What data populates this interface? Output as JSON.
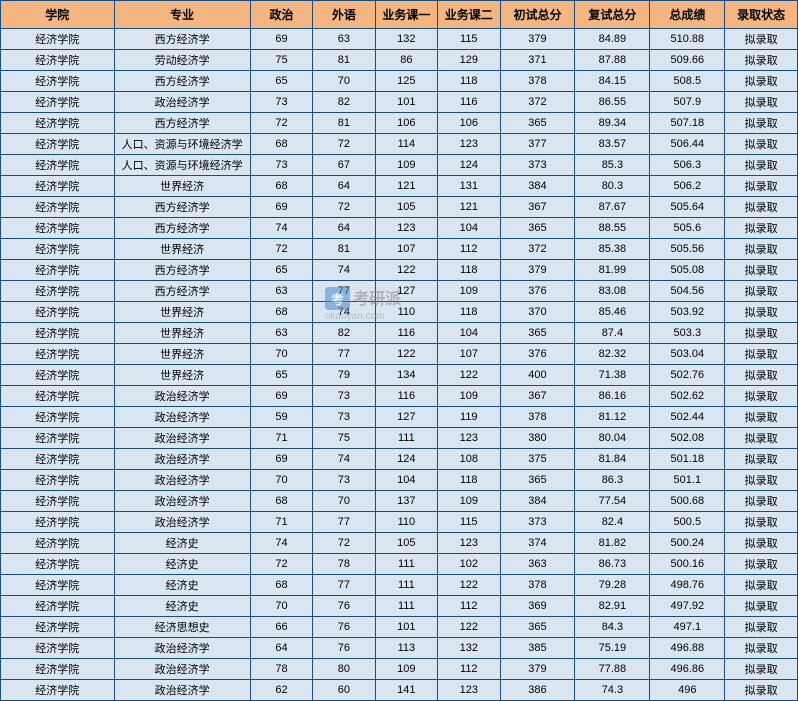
{
  "table": {
    "header_bg": "#f5b580",
    "row_bg": "#d9e6f2",
    "border_color": "#1a4d7a",
    "columns": [
      {
        "label": "学院",
        "key": "school"
      },
      {
        "label": "专业",
        "key": "major"
      },
      {
        "label": "政治",
        "key": "c1"
      },
      {
        "label": "外语",
        "key": "c2"
      },
      {
        "label": "业务课一",
        "key": "c3"
      },
      {
        "label": "业务课二",
        "key": "c4"
      },
      {
        "label": "初试总分",
        "key": "c5"
      },
      {
        "label": "复试总分",
        "key": "c6"
      },
      {
        "label": "总成绩",
        "key": "c7"
      },
      {
        "label": "录取状态",
        "key": "status"
      }
    ],
    "rows": [
      {
        "school": "经济学院",
        "major": "西方经济学",
        "c1": 69,
        "c2": 63,
        "c3": 132,
        "c4": 115,
        "c5": 379,
        "c6": 84.89,
        "c7": 510.88,
        "status": "拟录取"
      },
      {
        "school": "经济学院",
        "major": "劳动经济学",
        "c1": 75,
        "c2": 81,
        "c3": 86,
        "c4": 129,
        "c5": 371,
        "c6": 87.88,
        "c7": 509.66,
        "status": "拟录取"
      },
      {
        "school": "经济学院",
        "major": "西方经济学",
        "c1": 65,
        "c2": 70,
        "c3": 125,
        "c4": 118,
        "c5": 378,
        "c6": 84.15,
        "c7": 508.5,
        "status": "拟录取"
      },
      {
        "school": "经济学院",
        "major": "政治经济学",
        "c1": 73,
        "c2": 82,
        "c3": 101,
        "c4": 116,
        "c5": 372,
        "c6": 86.55,
        "c7": 507.9,
        "status": "拟录取"
      },
      {
        "school": "经济学院",
        "major": "西方经济学",
        "c1": 72,
        "c2": 81,
        "c3": 106,
        "c4": 106,
        "c5": 365,
        "c6": 89.34,
        "c7": 507.18,
        "status": "拟录取"
      },
      {
        "school": "经济学院",
        "major": "人口、资源与环境经济学",
        "c1": 68,
        "c2": 72,
        "c3": 114,
        "c4": 123,
        "c5": 377,
        "c6": 83.57,
        "c7": 506.44,
        "status": "拟录取"
      },
      {
        "school": "经济学院",
        "major": "人口、资源与环境经济学",
        "c1": 73,
        "c2": 67,
        "c3": 109,
        "c4": 124,
        "c5": 373,
        "c6": 85.3,
        "c7": 506.3,
        "status": "拟录取"
      },
      {
        "school": "经济学院",
        "major": "世界经济",
        "c1": 68,
        "c2": 64,
        "c3": 121,
        "c4": 131,
        "c5": 384,
        "c6": 80.3,
        "c7": 506.2,
        "status": "拟录取"
      },
      {
        "school": "经济学院",
        "major": "西方经济学",
        "c1": 69,
        "c2": 72,
        "c3": 105,
        "c4": 121,
        "c5": 367,
        "c6": 87.67,
        "c7": 505.64,
        "status": "拟录取"
      },
      {
        "school": "经济学院",
        "major": "西方经济学",
        "c1": 74,
        "c2": 64,
        "c3": 123,
        "c4": 104,
        "c5": 365,
        "c6": 88.55,
        "c7": 505.6,
        "status": "拟录取"
      },
      {
        "school": "经济学院",
        "major": "世界经济",
        "c1": 72,
        "c2": 81,
        "c3": 107,
        "c4": 112,
        "c5": 372,
        "c6": 85.38,
        "c7": 505.56,
        "status": "拟录取"
      },
      {
        "school": "经济学院",
        "major": "西方经济学",
        "c1": 65,
        "c2": 74,
        "c3": 122,
        "c4": 118,
        "c5": 379,
        "c6": 81.99,
        "c7": 505.08,
        "status": "拟录取"
      },
      {
        "school": "经济学院",
        "major": "西方经济学",
        "c1": 63,
        "c2": 77,
        "c3": 127,
        "c4": 109,
        "c5": 376,
        "c6": 83.08,
        "c7": 504.56,
        "status": "拟录取"
      },
      {
        "school": "经济学院",
        "major": "世界经济",
        "c1": 68,
        "c2": 74,
        "c3": 110,
        "c4": 118,
        "c5": 370,
        "c6": 85.46,
        "c7": 503.92,
        "status": "拟录取"
      },
      {
        "school": "经济学院",
        "major": "世界经济",
        "c1": 63,
        "c2": 82,
        "c3": 116,
        "c4": 104,
        "c5": 365,
        "c6": 87.4,
        "c7": 503.3,
        "status": "拟录取"
      },
      {
        "school": "经济学院",
        "major": "世界经济",
        "c1": 70,
        "c2": 77,
        "c3": 122,
        "c4": 107,
        "c5": 376,
        "c6": 82.32,
        "c7": 503.04,
        "status": "拟录取"
      },
      {
        "school": "经济学院",
        "major": "世界经济",
        "c1": 65,
        "c2": 79,
        "c3": 134,
        "c4": 122,
        "c5": 400,
        "c6": 71.38,
        "c7": 502.76,
        "status": "拟录取"
      },
      {
        "school": "经济学院",
        "major": "政治经济学",
        "c1": 69,
        "c2": 73,
        "c3": 116,
        "c4": 109,
        "c5": 367,
        "c6": 86.16,
        "c7": 502.62,
        "status": "拟录取"
      },
      {
        "school": "经济学院",
        "major": "政治经济学",
        "c1": 59,
        "c2": 73,
        "c3": 127,
        "c4": 119,
        "c5": 378,
        "c6": 81.12,
        "c7": 502.44,
        "status": "拟录取"
      },
      {
        "school": "经济学院",
        "major": "政治经济学",
        "c1": 71,
        "c2": 75,
        "c3": 111,
        "c4": 123,
        "c5": 380,
        "c6": 80.04,
        "c7": 502.08,
        "status": "拟录取"
      },
      {
        "school": "经济学院",
        "major": "政治经济学",
        "c1": 69,
        "c2": 74,
        "c3": 124,
        "c4": 108,
        "c5": 375,
        "c6": 81.84,
        "c7": 501.18,
        "status": "拟录取"
      },
      {
        "school": "经济学院",
        "major": "政治经济学",
        "c1": 70,
        "c2": 73,
        "c3": 104,
        "c4": 118,
        "c5": 365,
        "c6": 86.3,
        "c7": 501.1,
        "status": "拟录取"
      },
      {
        "school": "经济学院",
        "major": "政治经济学",
        "c1": 68,
        "c2": 70,
        "c3": 137,
        "c4": 109,
        "c5": 384,
        "c6": 77.54,
        "c7": 500.68,
        "status": "拟录取"
      },
      {
        "school": "经济学院",
        "major": "政治经济学",
        "c1": 71,
        "c2": 77,
        "c3": 110,
        "c4": 115,
        "c5": 373,
        "c6": 82.4,
        "c7": 500.5,
        "status": "拟录取"
      },
      {
        "school": "经济学院",
        "major": "经济史",
        "c1": 74,
        "c2": 72,
        "c3": 105,
        "c4": 123,
        "c5": 374,
        "c6": 81.82,
        "c7": 500.24,
        "status": "拟录取"
      },
      {
        "school": "经济学院",
        "major": "经济史",
        "c1": 72,
        "c2": 78,
        "c3": 111,
        "c4": 102,
        "c5": 363,
        "c6": 86.73,
        "c7": 500.16,
        "status": "拟录取"
      },
      {
        "school": "经济学院",
        "major": "经济史",
        "c1": 68,
        "c2": 77,
        "c3": 111,
        "c4": 122,
        "c5": 378,
        "c6": 79.28,
        "c7": 498.76,
        "status": "拟录取"
      },
      {
        "school": "经济学院",
        "major": "经济史",
        "c1": 70,
        "c2": 76,
        "c3": 111,
        "c4": 112,
        "c5": 369,
        "c6": 82.91,
        "c7": 497.92,
        "status": "拟录取"
      },
      {
        "school": "经济学院",
        "major": "经济思想史",
        "c1": 66,
        "c2": 76,
        "c3": 101,
        "c4": 122,
        "c5": 365,
        "c6": 84.3,
        "c7": 497.1,
        "status": "拟录取"
      },
      {
        "school": "经济学院",
        "major": "政治经济学",
        "c1": 64,
        "c2": 76,
        "c3": 113,
        "c4": 132,
        "c5": 385,
        "c6": 75.19,
        "c7": 496.88,
        "status": "拟录取"
      },
      {
        "school": "经济学院",
        "major": "政治经济学",
        "c1": 78,
        "c2": 80,
        "c3": 109,
        "c4": 112,
        "c5": 379,
        "c6": 77.88,
        "c7": 496.86,
        "status": "拟录取"
      },
      {
        "school": "经济学院",
        "major": "政治经济学",
        "c1": 62,
        "c2": 60,
        "c3": 141,
        "c4": 123,
        "c5": 386,
        "c6": 74.3,
        "c7": 496,
        "status": "拟录取"
      }
    ]
  },
  "watermark": {
    "logo_text": "考",
    "brand_text": "考研派",
    "url": "okaoyan.com"
  }
}
